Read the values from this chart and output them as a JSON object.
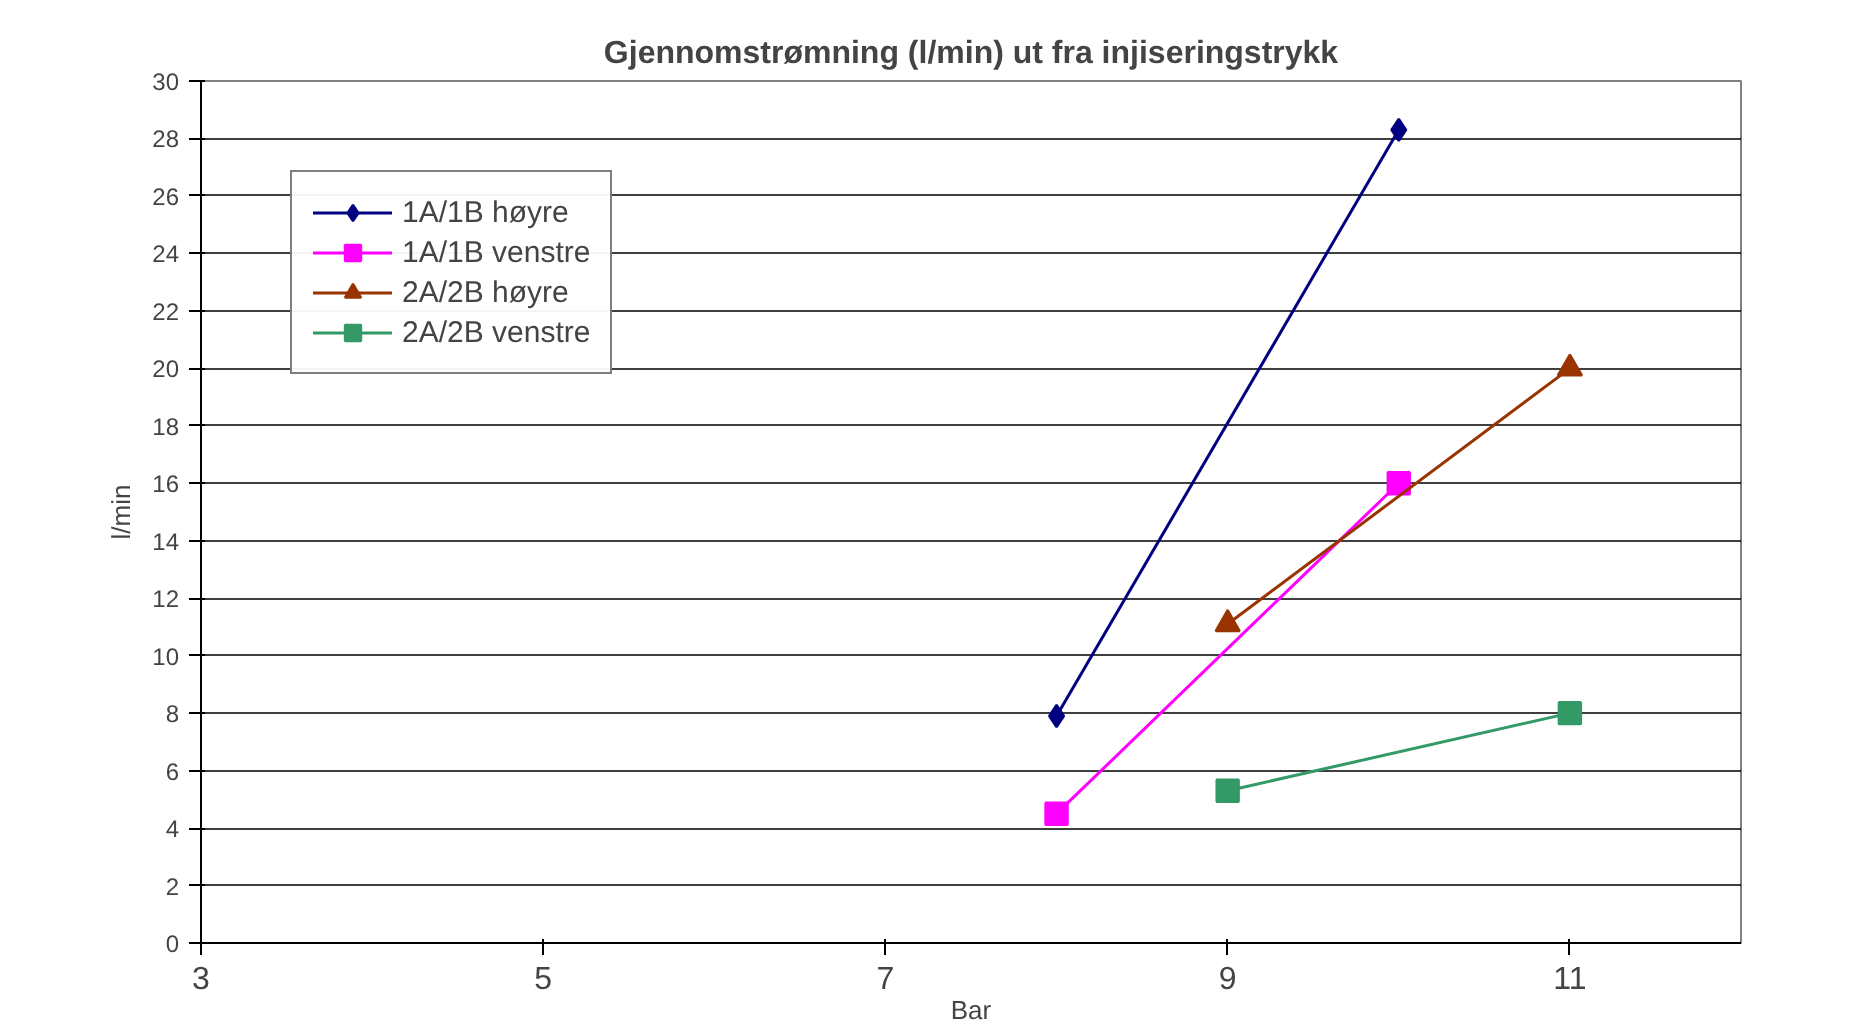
{
  "chart_data": {
    "type": "line",
    "title": "Gjennomstrømning (l/min) ut fra injiseringstrykk",
    "xlabel": "Bar",
    "ylabel": "l/min",
    "xlim": [
      3,
      12
    ],
    "xticks": [
      3,
      5,
      7,
      9,
      11
    ],
    "ylim": [
      0,
      30
    ],
    "yticks": [
      0,
      2,
      4,
      6,
      8,
      10,
      12,
      14,
      16,
      18,
      20,
      22,
      24,
      26,
      28,
      30
    ],
    "grid": "y",
    "legend": "top left",
    "line_style": "solid",
    "series": [
      {
        "name": "1A/1B høyre",
        "color": "#000080",
        "marker": "diamond",
        "x": [
          8,
          10
        ],
        "values": [
          7.9,
          28.3
        ]
      },
      {
        "name": "1A/1B venstre",
        "color": "#ff00ff",
        "marker": "square",
        "x": [
          8,
          10
        ],
        "values": [
          4.5,
          16
        ]
      },
      {
        "name": "2A/2B høyre",
        "color": "#993300",
        "marker": "triangle",
        "x": [
          9,
          11
        ],
        "values": [
          11.1,
          20
        ]
      },
      {
        "name": "2A/2B venstre",
        "color": "#339966",
        "marker": "square",
        "x": [
          9,
          11
        ],
        "values": [
          5.3,
          8
        ]
      }
    ]
  }
}
